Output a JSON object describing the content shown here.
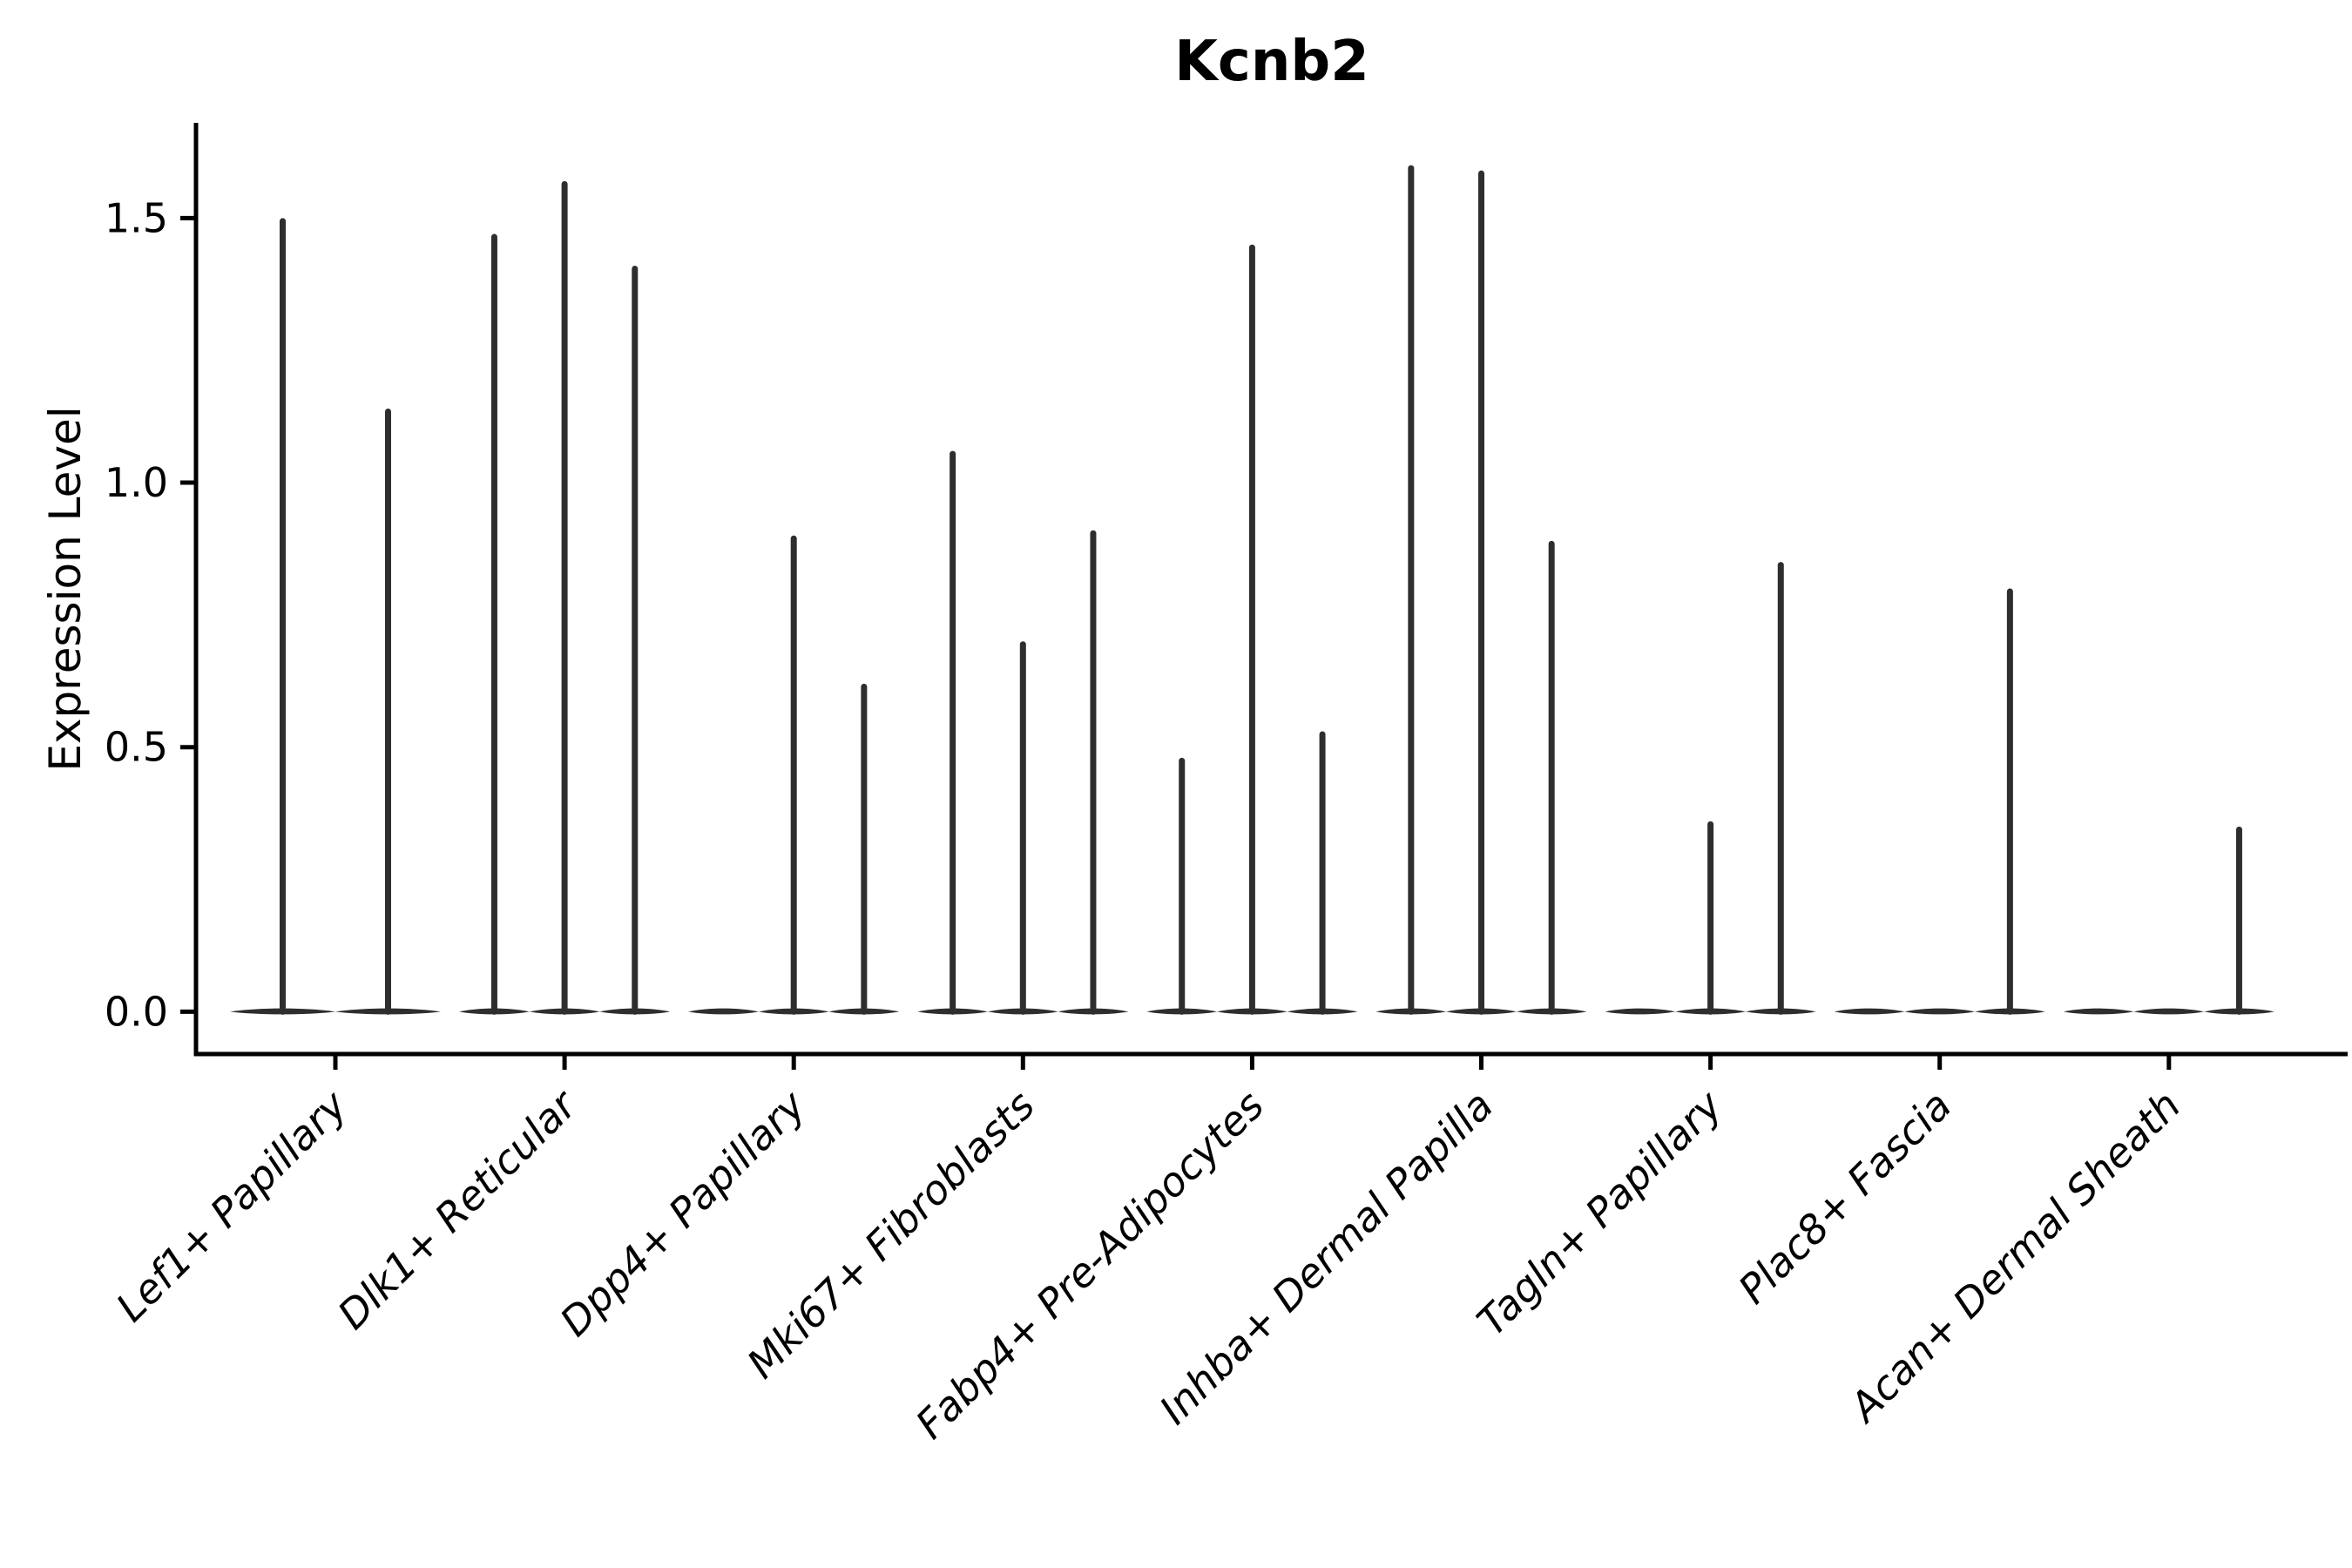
{
  "chart_data": {
    "type": "violin",
    "title": "Kcnb2",
    "xlabel": "",
    "ylabel": "Expression Level",
    "yticks": [
      0.0,
      0.5,
      1.0,
      1.5
    ],
    "ytick_labels": [
      "0.0",
      "0.5",
      "1.0",
      "1.5"
    ],
    "ylim": [
      -0.08,
      1.68
    ],
    "grid": false,
    "legend": null,
    "violin_color": "#2e2e2e",
    "axis_color": "#000000",
    "categories": [
      "Lef1+ Papillary",
      "Dlk1+ Reticular",
      "Dpp4+ Papillary",
      "Mki67+ Fibroblasts",
      "Fabp4+ Pre-Adipocytes",
      "Inhba+ Dermal Papilla",
      "Tagln+ Papillary",
      "Plac8+ Fascia",
      "Acan+ Dermal Sheath"
    ],
    "groups": [
      {
        "category": "Lef1+ Papillary",
        "violin_max": [
          1.5,
          1.14
        ]
      },
      {
        "category": "Dlk1+ Reticular",
        "violin_max": [
          1.47,
          1.57,
          1.41
        ]
      },
      {
        "category": "Dpp4+ Papillary",
        "violin_max": [
          0,
          0.9,
          0.62
        ]
      },
      {
        "category": "Mki67+ Fibroblasts",
        "violin_max": [
          1.06,
          0.7,
          0.91
        ]
      },
      {
        "category": "Fabp4+ Pre-Adipocytes",
        "violin_max": [
          0.48,
          1.45,
          0.53
        ]
      },
      {
        "category": "Inhba+ Dermal Papilla",
        "violin_max": [
          1.6,
          1.59,
          0.89
        ]
      },
      {
        "category": "Tagln+ Papillary",
        "violin_max": [
          0,
          0.36,
          0.85
        ]
      },
      {
        "category": "Plac8+ Fascia",
        "violin_max": [
          0,
          0,
          0.8
        ]
      },
      {
        "category": "Acan+ Dermal Sheath",
        "violin_max": [
          0,
          0,
          0.35
        ]
      }
    ]
  }
}
